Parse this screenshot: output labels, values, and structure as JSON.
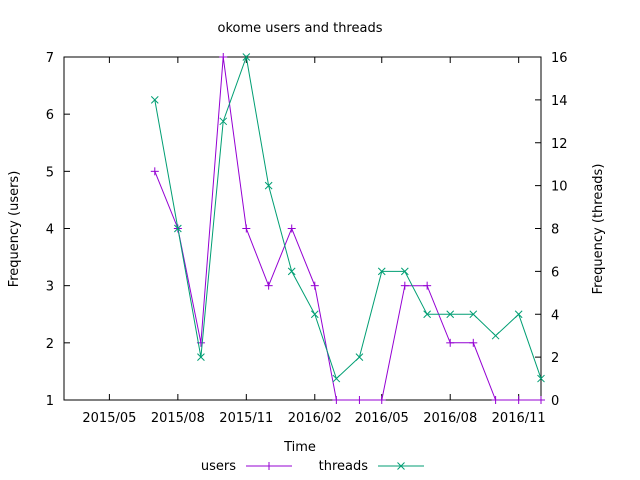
{
  "chart_data": {
    "type": "line",
    "title": "okome users and threads",
    "xlabel": "Time",
    "ylabel": "Frequency (users)",
    "y2label": "Frequency (threads)",
    "x_tick_labels": [
      "2015/05",
      "2015/08",
      "2015/11",
      "2016/02",
      "2016/05",
      "2016/08",
      "2016/11"
    ],
    "x_tick_dates": [
      "2015-05-01",
      "2015-08-01",
      "2015-11-01",
      "2016-02-01",
      "2016-05-01",
      "2016-08-01",
      "2016-11-01"
    ],
    "xlim": [
      "2015-03-01",
      "2016-12-01"
    ],
    "ylim": [
      1,
      7
    ],
    "y_ticks": [
      "1",
      "2",
      "3",
      "4",
      "5",
      "6",
      "7"
    ],
    "y2lim": [
      0,
      16
    ],
    "y2_ticks": [
      "0",
      "2",
      "4",
      "6",
      "8",
      "10",
      "12",
      "14",
      "16"
    ],
    "legend_position": "bottom",
    "series": [
      {
        "name": "users",
        "axis": "left",
        "marker": "+",
        "color": "#9400d3",
        "x": [
          "2015-07-01",
          "2015-08-01",
          "2015-09-01",
          "2015-10-01",
          "2015-11-01",
          "2015-12-01",
          "2016-01-01",
          "2016-02-01",
          "2016-03-01",
          "2016-04-01",
          "2016-05-01",
          "2016-06-01",
          "2016-07-01",
          "2016-08-01",
          "2016-09-01",
          "2016-10-01",
          "2016-11-01",
          "2016-12-01"
        ],
        "values": [
          5,
          4,
          2,
          7,
          4,
          3,
          4,
          3,
          1,
          1,
          1,
          3,
          3,
          2,
          2,
          1,
          1,
          1
        ]
      },
      {
        "name": "threads",
        "axis": "right",
        "marker": "x",
        "color": "#009e73",
        "x": [
          "2015-07-01",
          "2015-08-01",
          "2015-09-01",
          "2015-10-01",
          "2015-11-01",
          "2015-12-01",
          "2016-01-01",
          "2016-02-01",
          "2016-03-01",
          "2016-04-01",
          "2016-05-01",
          "2016-06-01",
          "2016-07-01",
          "2016-08-01",
          "2016-09-01",
          "2016-10-01",
          "2016-11-01",
          "2016-12-01"
        ],
        "values": [
          14,
          8,
          2,
          13,
          16,
          10,
          6,
          4,
          1,
          2,
          6,
          6,
          4,
          4,
          4,
          3,
          4,
          1
        ]
      }
    ]
  }
}
